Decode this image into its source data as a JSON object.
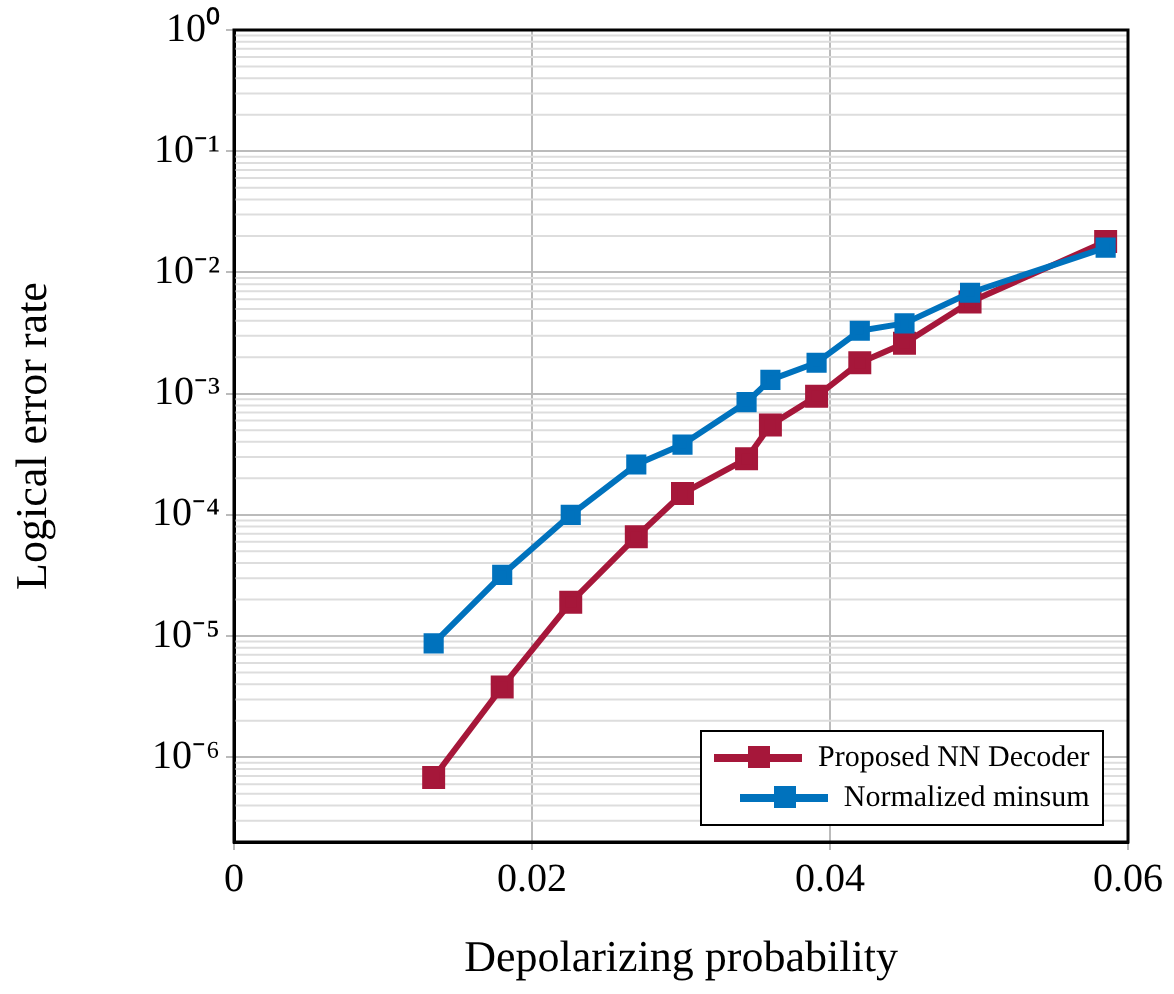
{
  "chart_data": {
    "type": "line",
    "xlabel": "Depolarizing probability",
    "ylabel": "Logical error rate",
    "x": [
      0.0134,
      0.018,
      0.0226,
      0.027,
      0.0301,
      0.0344,
      0.036,
      0.0391,
      0.042,
      0.045,
      0.0494,
      0.0585
    ],
    "series": [
      {
        "name": "Proposed NN Decoder",
        "color": "#a6173a",
        "values": [
          6.8e-07,
          3.8e-06,
          1.9e-05,
          6.6e-05,
          0.00015,
          0.00029,
          0.00055,
          0.00095,
          0.0018,
          0.0026,
          0.0057,
          0.018
        ]
      },
      {
        "name": "Normalized minsum",
        "color": "#0072bd",
        "values": [
          8.7e-06,
          3.2e-05,
          0.0001,
          0.00026,
          0.00038,
          0.00085,
          0.0013,
          0.0018,
          0.0033,
          0.0038,
          0.0068,
          0.016
        ]
      }
    ],
    "xlim": [
      0,
      0.06
    ],
    "xticks": [
      0,
      0.02,
      0.04,
      0.06
    ],
    "ylim": [
      2e-07,
      1
    ],
    "yticks": [
      {
        "value": 1e-06,
        "label": "10⁻⁶"
      },
      {
        "value": 1e-05,
        "label": "10⁻⁵"
      },
      {
        "value": 0.0001,
        "label": "10⁻⁴"
      },
      {
        "value": 0.001,
        "label": "10⁻³"
      },
      {
        "value": 0.01,
        "label": "10⁻²"
      },
      {
        "value": 0.1,
        "label": "10⁻¹"
      },
      {
        "value": 1,
        "label": "10⁰"
      }
    ],
    "log": true,
    "grid": true,
    "legend": "bottom right",
    "marker": "square",
    "line_style": "solid"
  }
}
